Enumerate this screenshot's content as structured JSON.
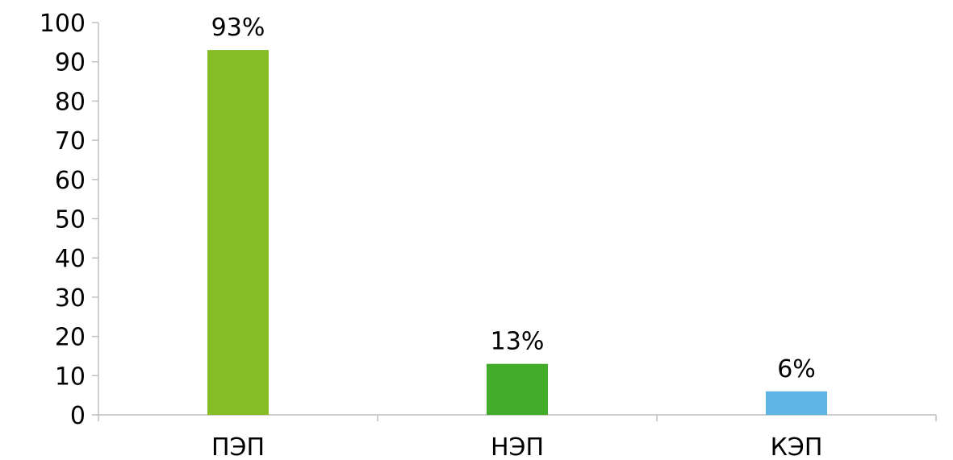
{
  "chart_data": {
    "type": "bar",
    "title": "",
    "xlabel": "",
    "ylabel": "",
    "categories": [
      "ПЭП",
      "НЭП",
      "КЭП"
    ],
    "values": [
      93,
      13,
      6
    ],
    "data_labels": [
      "93%",
      "13%",
      "6%"
    ],
    "colors": [
      "#86bc25",
      "#43ac2b",
      "#5db5e6"
    ],
    "ylim": [
      0,
      100
    ],
    "yticks": [
      0,
      10,
      20,
      30,
      40,
      50,
      60,
      70,
      80,
      90,
      100
    ],
    "grid": false,
    "legend": "none"
  }
}
